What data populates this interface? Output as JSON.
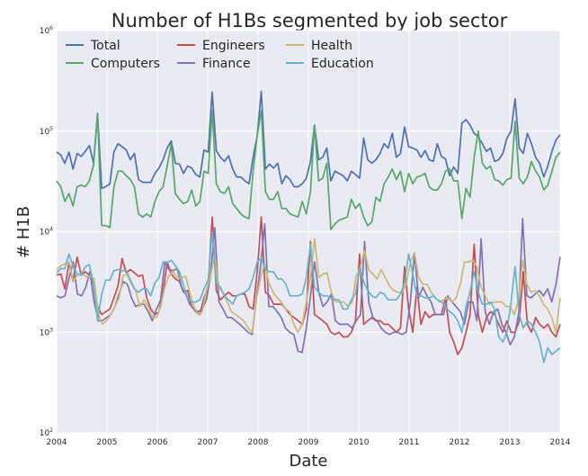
{
  "chart_data": {
    "type": "line",
    "title": "Number of H1Bs segmented by job sector",
    "xlabel": "Date",
    "ylabel": "# H1B",
    "yscale": "log",
    "ylim": [
      100,
      1000000
    ],
    "xlim": [
      2004,
      2014
    ],
    "grid": true,
    "legend_position": "top-left",
    "x_ticks": [
      "2004",
      "2005",
      "2006",
      "2007",
      "2008",
      "2009",
      "2010",
      "2011",
      "2012",
      "2013",
      "2014"
    ],
    "y_ticks": [
      {
        "value": 100,
        "base": "10",
        "exp": "2"
      },
      {
        "value": 1000,
        "base": "10",
        "exp": "3"
      },
      {
        "value": 10000,
        "base": "10",
        "exp": "4"
      },
      {
        "value": 100000,
        "base": "10",
        "exp": "5"
      },
      {
        "value": 1000000,
        "base": "10",
        "exp": "6"
      }
    ],
    "x_start": "2004-01",
    "x_step": "1 month",
    "series": [
      {
        "name": "Total",
        "color": "#4c72b0",
        "values": [
          62000,
          58000,
          48000,
          62000,
          42000,
          60000,
          56000,
          63000,
          72000,
          48000,
          150000,
          27000,
          28000,
          30000,
          62000,
          75000,
          70000,
          65000,
          52000,
          60000,
          33000,
          31000,
          31000,
          31000,
          38000,
          43000,
          52000,
          68000,
          80000,
          48000,
          47000,
          38000,
          45000,
          43000,
          37000,
          35000,
          65000,
          62000,
          245000,
          64000,
          55000,
          50000,
          57000,
          42000,
          35000,
          35000,
          32000,
          30000,
          55000,
          90000,
          250000,
          42000,
          47000,
          43000,
          48000,
          30000,
          36000,
          33000,
          28000,
          28000,
          30000,
          34000,
          50000,
          115000,
          52000,
          55000,
          68000,
          32000,
          40000,
          38000,
          36000,
          32000,
          40000,
          37000,
          34000,
          85000,
          52000,
          48000,
          52000,
          60000,
          75000,
          68000,
          95000,
          55000,
          60000,
          110000,
          70000,
          68000,
          65000,
          55000,
          64000,
          52000,
          50000,
          75000,
          56000,
          53000,
          36000,
          44000,
          38000,
          120000,
          130000,
          115000,
          95000,
          88000,
          75000,
          63000,
          68000,
          50000,
          52000,
          60000,
          85000,
          100000,
          210000,
          68000,
          60000,
          95000,
          75000,
          55000,
          48000,
          35000,
          45000,
          63000,
          82000,
          92000
        ]
      },
      {
        "name": "Computers",
        "color": "#55a868",
        "values": [
          32000,
          28000,
          20000,
          24000,
          18000,
          28000,
          29000,
          28000,
          32000,
          46000,
          150000,
          11500,
          11500,
          11000,
          28000,
          40000,
          40000,
          36000,
          33000,
          28000,
          15000,
          14000,
          15000,
          14000,
          20000,
          25000,
          28000,
          45000,
          75000,
          24000,
          21000,
          19000,
          20000,
          26000,
          18000,
          20000,
          40000,
          38000,
          160000,
          30000,
          25000,
          24000,
          28000,
          19000,
          17000,
          15000,
          14000,
          13500,
          40000,
          90000,
          160000,
          25000,
          21000,
          21000,
          25000,
          17000,
          17000,
          15000,
          14500,
          14000,
          20000,
          15000,
          25000,
          115000,
          32000,
          34000,
          48000,
          10500,
          12000,
          13000,
          13500,
          14000,
          21000,
          17000,
          19000,
          14000,
          11500,
          12500,
          22000,
          20000,
          30000,
          35000,
          42000,
          33000,
          40000,
          25000,
          38000,
          30000,
          35000,
          36000,
          38000,
          28000,
          26000,
          26000,
          30000,
          40000,
          42000,
          32000,
          32000,
          13500,
          27000,
          22000,
          55000,
          100000,
          48000,
          42000,
          45000,
          33000,
          32000,
          29000,
          33000,
          34000,
          125000,
          34000,
          30000,
          35000,
          50000,
          40000,
          35000,
          26000,
          29000,
          40000,
          55000,
          62000
        ]
      },
      {
        "name": "Engineers",
        "color": "#c44e52",
        "values": [
          3700,
          3800,
          2700,
          4900,
          3200,
          5600,
          3700,
          4000,
          3700,
          3000,
          1800,
          1500,
          1600,
          1700,
          2200,
          2900,
          5400,
          3900,
          4200,
          3900,
          3600,
          3700,
          2200,
          1700,
          1500,
          1600,
          2500,
          5000,
          3800,
          3400,
          3200,
          2500,
          2600,
          1800,
          1600,
          1500,
          2200,
          2800,
          14000,
          2600,
          2100,
          2300,
          2500,
          2300,
          2300,
          2400,
          2400,
          1800,
          1700,
          4000,
          14000,
          2500,
          2300,
          1900,
          1900,
          1900,
          1700,
          1500,
          1400,
          1300,
          1200,
          1700,
          8000,
          1500,
          1400,
          1300,
          1200,
          1000,
          950,
          1000,
          900,
          900,
          1000,
          1300,
          6000,
          1200,
          1300,
          1400,
          1300,
          1300,
          1200,
          1200,
          1100,
          1000,
          1100,
          4500,
          1700,
          1000,
          2800,
          1200,
          1600,
          1400,
          1500,
          1500,
          1500,
          2200,
          1000,
          800,
          600,
          700,
          1000,
          1500,
          7500,
          1500,
          1000,
          1400,
          1600,
          1500,
          1200,
          1000,
          1300,
          1000,
          1000,
          1300,
          4000,
          1200,
          1000,
          1400,
          1200,
          1100,
          1200,
          1000,
          900,
          1200
        ]
      },
      {
        "name": "Finance",
        "color": "#8172b2",
        "values": [
          2300,
          2200,
          2300,
          3500,
          5000,
          2400,
          2300,
          2800,
          4000,
          2000,
          1300,
          1300,
          1400,
          1500,
          1800,
          2400,
          3200,
          3000,
          2200,
          1800,
          1900,
          1900,
          1600,
          1300,
          1700,
          2100,
          5000,
          4200,
          4100,
          4300,
          2800,
          2400,
          1900,
          1700,
          1600,
          1700,
          2100,
          3700,
          11000,
          2000,
          1700,
          1400,
          1400,
          1300,
          1200,
          1100,
          1000,
          950,
          2200,
          4500,
          12000,
          1800,
          1800,
          1600,
          1400,
          1100,
          1000,
          950,
          650,
          630,
          1100,
          2300,
          5000,
          2500,
          1800,
          2000,
          2400,
          1300,
          1200,
          1200,
          1200,
          1100,
          1300,
          1500,
          8000,
          2000,
          1400,
          1300,
          1100,
          1000,
          950,
          1000,
          1000,
          950,
          1000,
          2000,
          6000,
          2200,
          2800,
          2300,
          2000,
          1500,
          1500,
          1500,
          2300,
          2000,
          1800,
          1600,
          1200,
          2000,
          2000,
          1300,
          8500,
          1600,
          1200,
          1600,
          1700,
          1200,
          1000,
          750,
          900,
          1500,
          13500,
          2300,
          2200,
          2400,
          2600,
          2300,
          2700,
          2000,
          3000,
          5600
        ]
      },
      {
        "name": "Health",
        "color": "#ccb974",
        "values": [
          4200,
          4600,
          4800,
          5000,
          3200,
          3700,
          3800,
          3600,
          3600,
          3400,
          1500,
          1200,
          1300,
          1500,
          1800,
          2200,
          3700,
          3700,
          3000,
          2600,
          1800,
          2100,
          1800,
          1400,
          1400,
          1800,
          2800,
          3700,
          4000,
          3500,
          3500,
          3600,
          2500,
          1800,
          1500,
          1600,
          2600,
          3700,
          5800,
          2800,
          2500,
          2000,
          1600,
          1500,
          1400,
          1300,
          1100,
          1000,
          2100,
          3500,
          4800,
          3100,
          2500,
          2200,
          2000,
          1700,
          1600,
          1200,
          1000,
          1200,
          2000,
          3500,
          8500,
          3500,
          3800,
          3900,
          2500,
          2000,
          2000,
          2000,
          1800,
          2000,
          3600,
          4500,
          6500,
          4200,
          3800,
          3400,
          4200,
          3500,
          2900,
          2600,
          2500,
          2500,
          3000,
          5000,
          6200,
          3500,
          3000,
          3000,
          2500,
          2200,
          2000,
          2100,
          2200,
          2000,
          2200,
          3000,
          5000,
          5000,
          5200,
          4500,
          2800,
          2300,
          1900,
          2000,
          2000,
          2000,
          1800,
          1800,
          1500,
          2100,
          5200,
          3000,
          2500,
          2600,
          2300,
          1900,
          1700,
          1400,
          1000,
          2200
        ]
      },
      {
        "name": "Education",
        "color": "#64b5cd",
        "values": [
          3900,
          4300,
          4300,
          6000,
          4600,
          3800,
          3700,
          4500,
          4700,
          3000,
          1300,
          2400,
          3300,
          3300,
          4100,
          4200,
          4100,
          4100,
          3300,
          2700,
          2500,
          2700,
          2700,
          2300,
          3100,
          3500,
          5000,
          4900,
          5200,
          4600,
          4000,
          2900,
          2200,
          2000,
          2000,
          2100,
          2700,
          3300,
          10000,
          3100,
          2800,
          2300,
          2100,
          1900,
          2300,
          2400,
          2500,
          2700,
          3500,
          5000,
          5500,
          4200,
          4000,
          4000,
          3400,
          3400,
          3000,
          2300,
          2300,
          2300,
          2400,
          3500,
          7500,
          2800,
          2500,
          2300,
          2300,
          2200,
          2100,
          2100,
          1700,
          1700,
          2100,
          2400,
          4300,
          3200,
          2600,
          2300,
          2200,
          2500,
          2400,
          2100,
          2100,
          2100,
          2400,
          3100,
          6000,
          3800,
          2300,
          2300,
          2200,
          2200,
          2300,
          2100,
          2000,
          1800,
          1600,
          1500,
          1300,
          1000,
          1800,
          2500,
          4000,
          2500,
          1900,
          1900,
          2000,
          1700,
          900,
          800,
          1000,
          2000,
          4500,
          1500,
          1100,
          1300,
          1200,
          1000,
          800,
          500,
          700,
          600,
          650,
          700
        ]
      }
    ]
  }
}
